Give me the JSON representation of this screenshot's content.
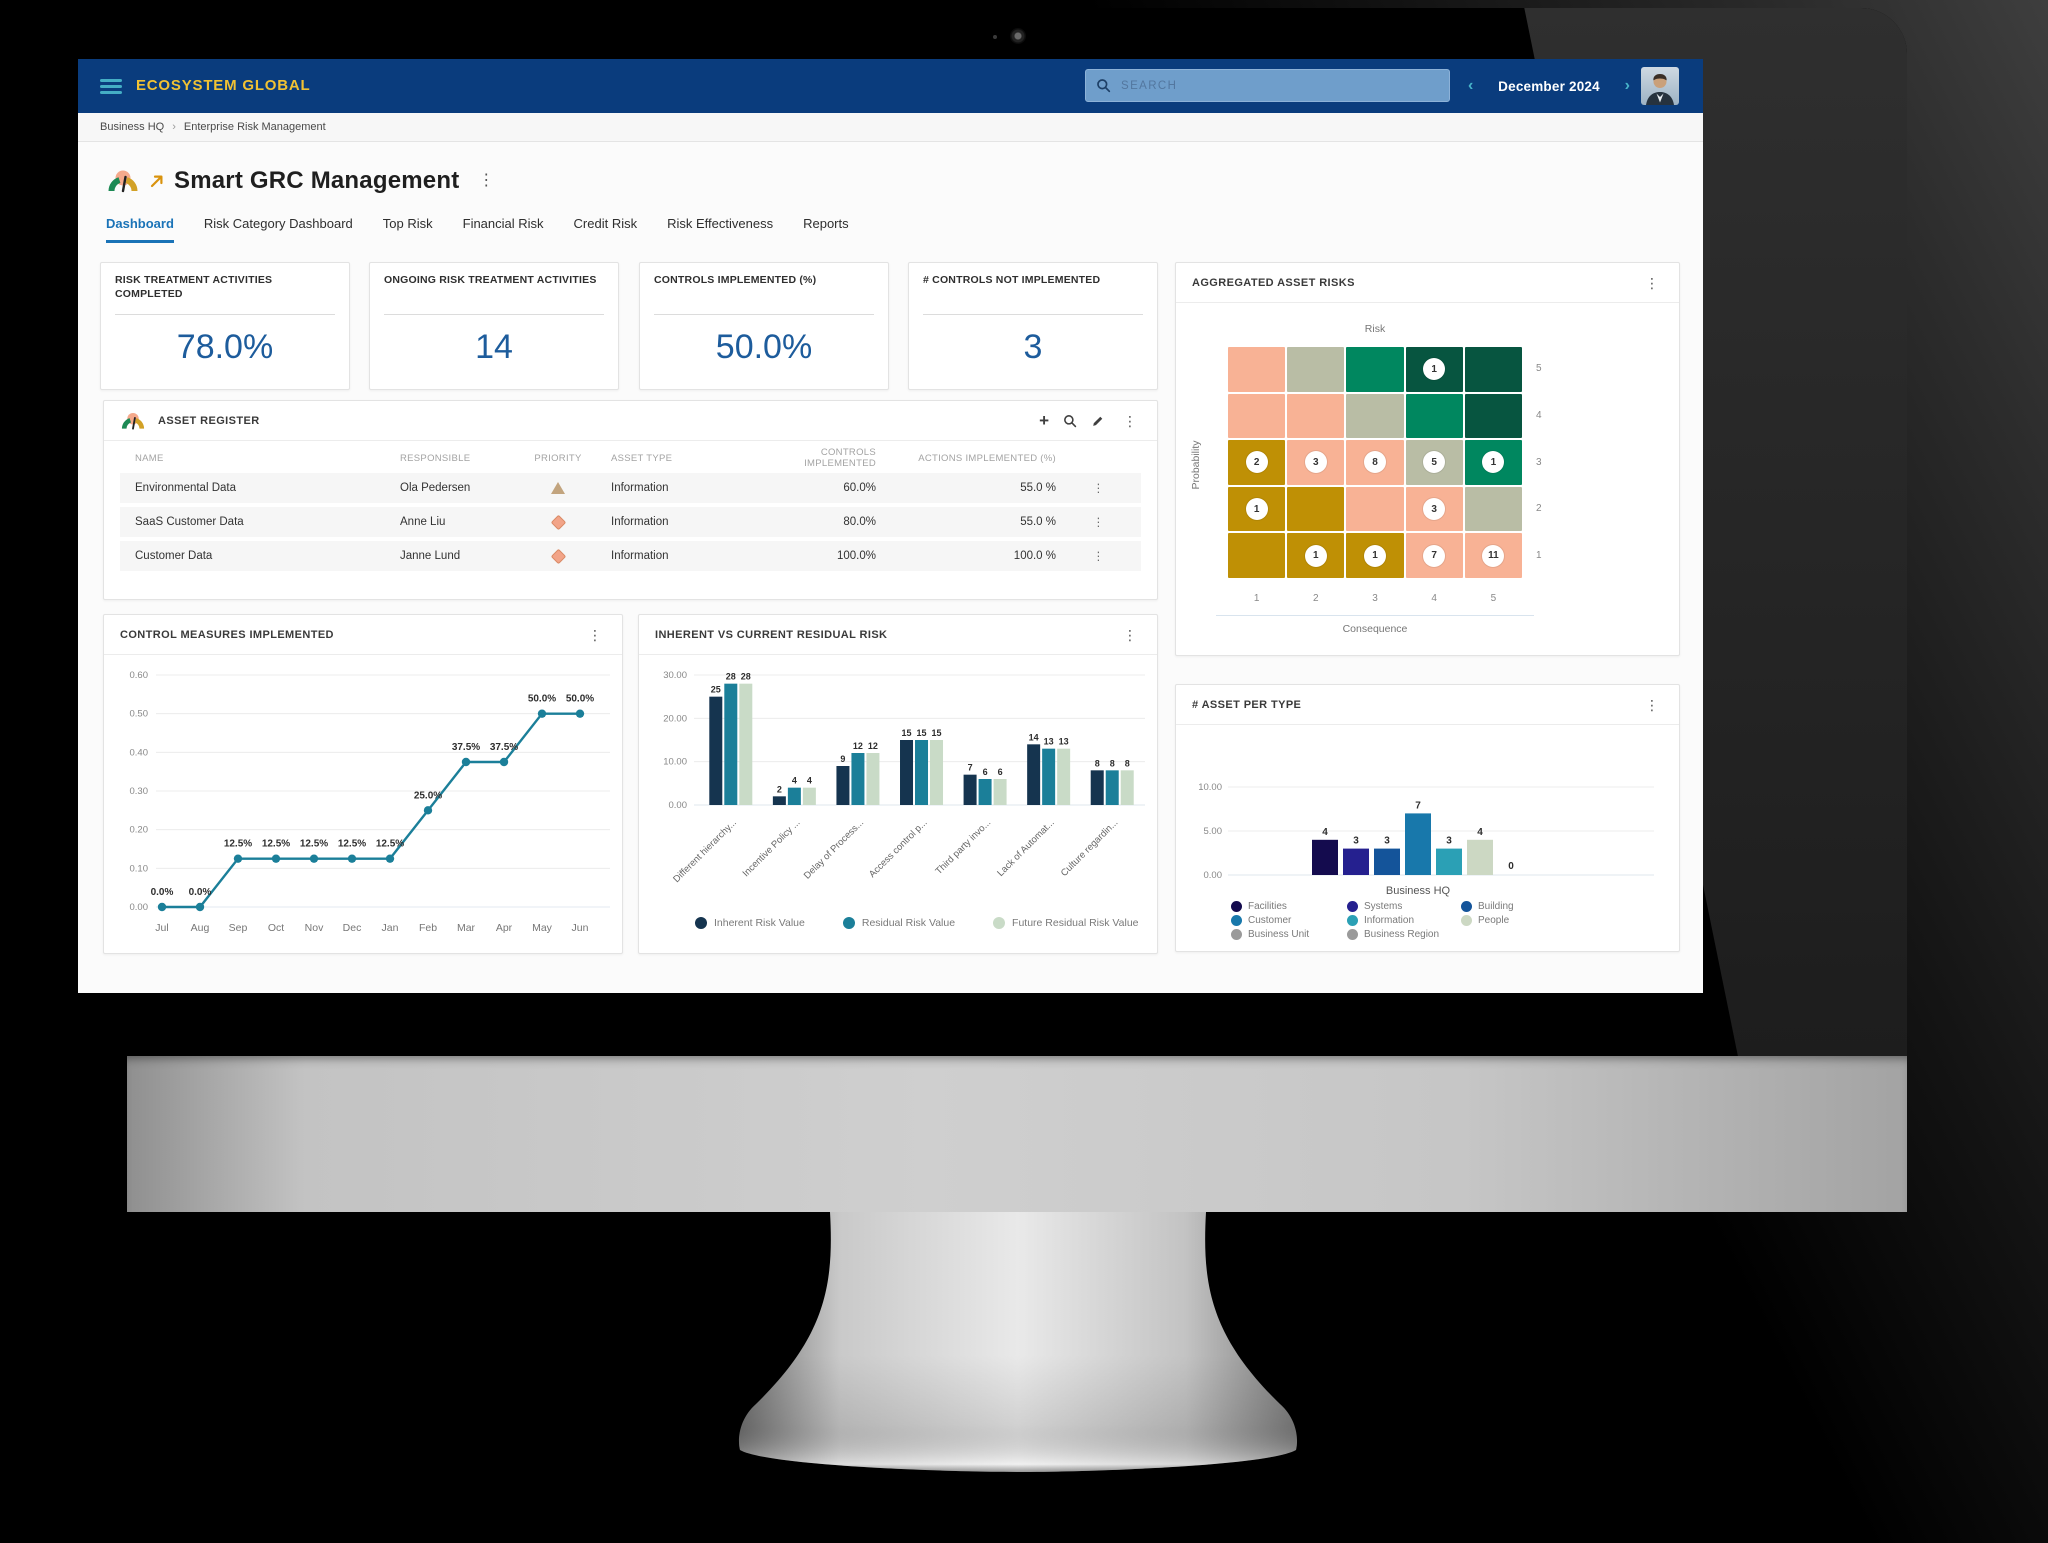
{
  "topbar": {
    "brand": "ECOSYSTEM GLOBAL",
    "search_placeholder": "SEARCH",
    "month": "December 2024",
    "prev_icon": "‹",
    "next_icon": "›"
  },
  "breadcrumb": {
    "items": [
      "Business HQ",
      "Enterprise Risk Management"
    ],
    "separator": "›"
  },
  "page": {
    "title": "Smart GRC Management"
  },
  "icons": {
    "kebab": "⋮",
    "plus": "+"
  },
  "tabs": [
    {
      "label": "Dashboard",
      "active": true
    },
    {
      "label": "Risk Category Dashboard",
      "active": false
    },
    {
      "label": "Top Risk",
      "active": false
    },
    {
      "label": "Financial Risk",
      "active": false
    },
    {
      "label": "Credit Risk",
      "active": false
    },
    {
      "label": "Risk Effectiveness",
      "active": false
    },
    {
      "label": "Reports",
      "active": false
    }
  ],
  "kpis": [
    {
      "label": "RISK TREATMENT ACTIVITIES COMPLETED",
      "value": "78.0%"
    },
    {
      "label": "ONGOING RISK TREATMENT ACTIVITIES",
      "value": "14"
    },
    {
      "label": "CONTROLS IMPLEMENTED (%)",
      "value": "50.0%"
    },
    {
      "label": "# CONTROLS NOT IMPLEMENTED",
      "value": "3"
    }
  ],
  "asset_register": {
    "title": "ASSET REGISTER",
    "columns": [
      "NAME",
      "RESPONSIBLE",
      "PRIORITY",
      "ASSET TYPE",
      "CONTROLS IMPLEMENTED",
      "ACTIONS IMPLEMENTED (%)"
    ],
    "rows": [
      {
        "name": "Environmental Data",
        "responsible": "Ola Pedersen",
        "priority": "triangle",
        "asset_type": "Information",
        "controls_implemented": "60.0%",
        "actions_implemented": "55.0 %"
      },
      {
        "name": "SaaS Customer Data",
        "responsible": "Anne Liu",
        "priority": "diamond",
        "asset_type": "Information",
        "controls_implemented": "80.0%",
        "actions_implemented": "55.0 %"
      },
      {
        "name": "Customer Data",
        "responsible": "Janne Lund",
        "priority": "diamond",
        "asset_type": "Information",
        "controls_implemented": "100.0%",
        "actions_implemented": "100.0 %"
      }
    ]
  },
  "chart_data": [
    {
      "id": "aggregated_asset_risks",
      "type": "heatmap",
      "title": "AGGREGATED ASSET RISKS",
      "top_label": "Risk",
      "x_label": "Consequence",
      "y_label": "Probability",
      "x_ticks": [
        "1",
        "2",
        "3",
        "4",
        "5"
      ],
      "y_ticks": [
        "5",
        "4",
        "3",
        "2",
        "1"
      ],
      "palette": {
        "salmon": "#f8b295",
        "sage": "#b9bda5",
        "green": "#00875f",
        "darkgreen": "#075540",
        "gold": "#bf9005"
      },
      "cell_colors": [
        [
          "salmon",
          "sage",
          "green",
          "darkgreen",
          "darkgreen"
        ],
        [
          "salmon",
          "salmon",
          "sage",
          "green",
          "darkgreen"
        ],
        [
          "gold",
          "salmon",
          "salmon",
          "sage",
          "green"
        ],
        [
          "gold",
          "gold",
          "salmon",
          "salmon",
          "sage"
        ],
        [
          "gold",
          "gold",
          "gold",
          "salmon",
          "salmon"
        ]
      ],
      "cell_counts": [
        [
          null,
          null,
          null,
          1,
          null
        ],
        [
          null,
          null,
          null,
          null,
          null
        ],
        [
          2,
          3,
          8,
          5,
          1
        ],
        [
          1,
          null,
          null,
          3,
          null
        ],
        [
          null,
          1,
          1,
          7,
          11
        ]
      ]
    },
    {
      "id": "control_measures_implemented",
      "type": "line",
      "title": "CONTROL MEASURES IMPLEMENTED",
      "categories": [
        "Jul",
        "Aug",
        "Sep",
        "Oct",
        "Nov",
        "Dec",
        "Jan",
        "Feb",
        "Mar",
        "Apr",
        "May",
        "Jun"
      ],
      "values": [
        0,
        0,
        0.125,
        0.125,
        0.125,
        0.125,
        0.125,
        0.25,
        0.375,
        0.375,
        0.5,
        0.5
      ],
      "point_labels": [
        "0.0%",
        "0.0%",
        "12.5%",
        "12.5%",
        "12.5%",
        "12.5%",
        "12.5%",
        "25.0%",
        "37.5%",
        "37.5%",
        "50.0%",
        "50.0%"
      ],
      "y_ticks": [
        "0.00",
        "0.10",
        "0.20",
        "0.30",
        "0.40",
        "0.50",
        "0.60"
      ],
      "ylim": [
        0,
        0.6
      ],
      "line_color": "#1b7f99"
    },
    {
      "id": "inherent_vs_current_residual_risk",
      "type": "bar",
      "title": "INHERENT VS CURRENT RESIDUAL RISK",
      "categories": [
        "Different hierarchy...",
        "Incentive Policy ...",
        "Delay of Process...",
        "Access control p...",
        "Third party invo...",
        "Lack of Automat...",
        "Culture regardin..."
      ],
      "series": [
        {
          "name": "Inherent Risk Value",
          "color": "#15344f",
          "values": [
            25,
            2,
            9,
            15,
            7,
            14,
            8
          ]
        },
        {
          "name": "Residual Risk Value",
          "color": "#1b7f99",
          "values": [
            28,
            4,
            12,
            15,
            6,
            13,
            8
          ]
        },
        {
          "name": "Future Residual Risk Value",
          "color": "#c9dbc7",
          "values": [
            28,
            4,
            12,
            15,
            6,
            13,
            8
          ]
        }
      ],
      "y_ticks": [
        "0.00",
        "10.00",
        "20.00",
        "30.00"
      ],
      "ylim": [
        0,
        30
      ]
    },
    {
      "id": "asset_per_type",
      "type": "bar",
      "title": "# ASSET PER TYPE",
      "group_label": "Business HQ",
      "categories": [
        "Facilities",
        "Systems",
        "Building",
        "Customer",
        "Information",
        "People",
        "Business Unit"
      ],
      "values": [
        4,
        3,
        3,
        7,
        3,
        4,
        0
      ],
      "bar_colors": [
        "#140b4e",
        "#25208f",
        "#14549a",
        "#1878ab",
        "#2ba0b5",
        "#ccd8c3",
        "#9a9a9a"
      ],
      "legend": [
        {
          "label": "Facilities",
          "color": "#140b4e"
        },
        {
          "label": "Systems",
          "color": "#25208f"
        },
        {
          "label": "Building",
          "color": "#14549a"
        },
        {
          "label": "Customer",
          "color": "#1878ab"
        },
        {
          "label": "Information",
          "color": "#2ba0b5"
        },
        {
          "label": "People",
          "color": "#ccd8c3"
        },
        {
          "label": "Business Unit",
          "color": "#9a9a9a"
        },
        {
          "label": "Business Region",
          "color": "#9a9a9a"
        }
      ],
      "y_ticks": [
        "0.00",
        "5.00",
        "10.00"
      ],
      "ylim": [
        0,
        10
      ]
    }
  ]
}
